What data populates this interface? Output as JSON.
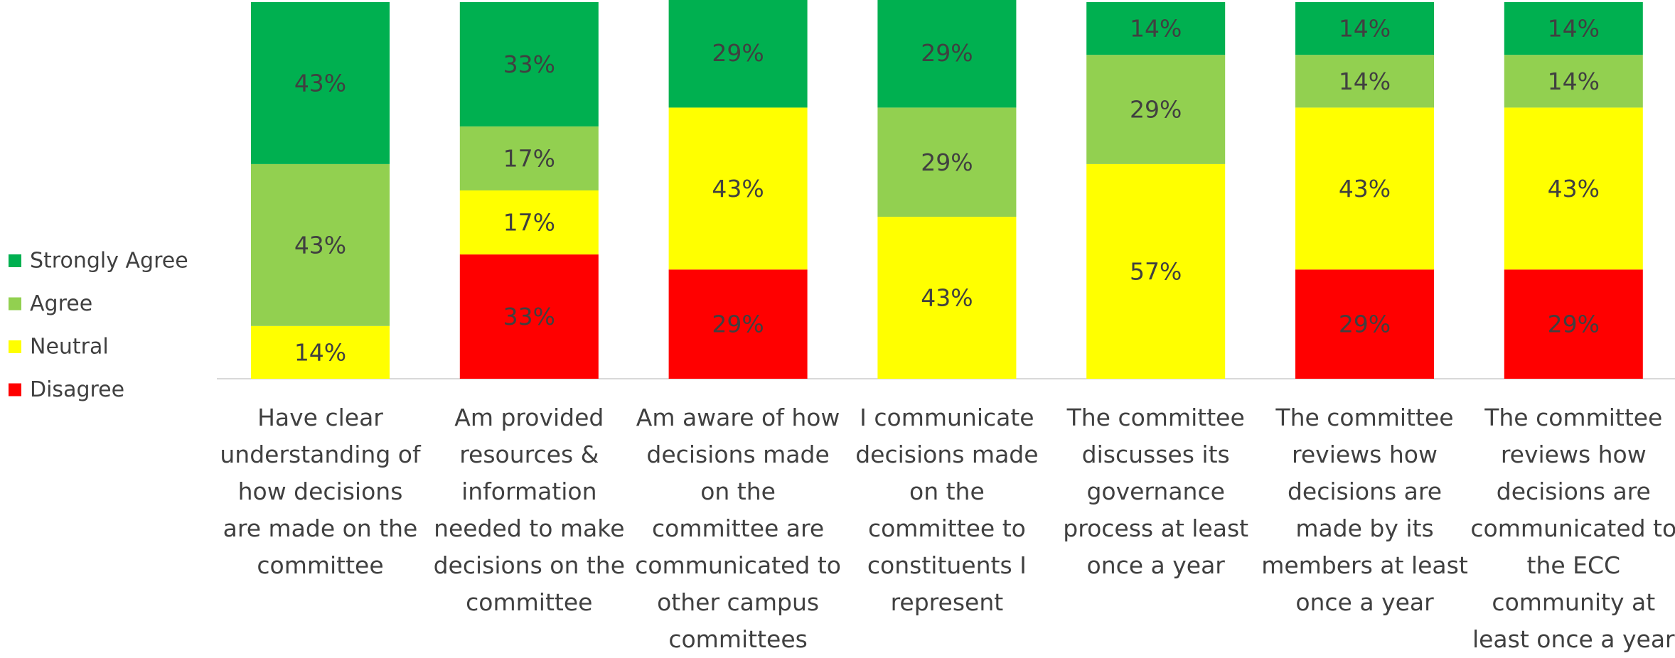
{
  "chart_data": {
    "type": "stacked_bar",
    "categories": [
      "Have clear understanding of how decisions are made on the committee",
      "Am provided resources & information needed to make decisions on the committee",
      "Am aware of how decisions made on the committee are communicated to other campus committees",
      "I communicate decisions made on the committee to constituents I represent",
      "The committee discusses its governance process at least once a year",
      "The committee reviews how decisions are made by its members at least once a year",
      "The committee reviews how decisions are communicated to the ECC community at least once a year"
    ],
    "ylim": [
      0,
      100
    ],
    "series": [
      {
        "name": "Disagree",
        "color": "#ff0000",
        "values": [
          0,
          33,
          29,
          0,
          0,
          29,
          29
        ],
        "value_labels": [
          null,
          "33%",
          "29%",
          null,
          null,
          "29%",
          "29%"
        ]
      },
      {
        "name": "Neutral",
        "color": "#ffff00",
        "values": [
          14,
          17,
          43,
          43,
          57,
          43,
          43
        ],
        "value_labels": [
          "14%",
          "17%",
          "43%",
          "43%",
          "57%",
          "43%",
          "43%"
        ]
      },
      {
        "name": "Agree",
        "color": "#92d050",
        "values": [
          43,
          17,
          0,
          29,
          29,
          14,
          14
        ],
        "value_labels": [
          "43%",
          "17%",
          null,
          "29%",
          "29%",
          "14%",
          "14%"
        ]
      },
      {
        "name": "Strongly Agree",
        "color": "#00b050",
        "values": [
          43,
          33,
          29,
          29,
          14,
          14,
          14
        ],
        "value_labels": [
          "43%",
          "33%",
          "29%",
          "29%",
          "14%",
          "14%",
          "14%"
        ]
      }
    ]
  }
}
